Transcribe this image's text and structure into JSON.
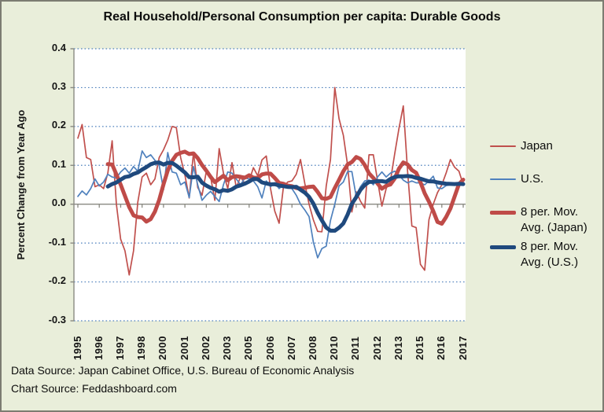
{
  "chart_data": {
    "type": "line",
    "title": "Real Household/Personal Consumption per capita: Durable Goods",
    "ylabel": "Percent Change from Year Ago",
    "x_unit": "quarter",
    "x_start": "1995Q1",
    "x_end": "2017Q3",
    "x_tick_every_n_quarters": 5,
    "x_tick_labels": [
      "1995",
      "1996",
      "1997",
      "1998",
      "2000",
      "2001",
      "2002",
      "2003",
      "2005",
      "2006",
      "2007",
      "2008",
      "2010",
      "2011",
      "2012",
      "2013",
      "2015",
      "2016",
      "2017"
    ],
    "y_ticks": [
      0.4,
      0.3,
      0.2,
      0.1,
      0.0,
      -0.1,
      -0.2,
      -0.3
    ],
    "y_tick_labels": [
      "0.4",
      "0.3",
      "0.2",
      "0.1",
      "0.0",
      "-0.1",
      "-0.2",
      "-0.3"
    ],
    "ylim": [
      -0.3,
      0.4
    ],
    "grid": "horizontal-dotted",
    "gridline_color": "#4f81bd",
    "axis_color": "#8a8a82",
    "plot_background": "#ffffff",
    "figure_background": "#e9eeda",
    "legend_position": "right",
    "series": [
      {
        "id": "japan",
        "name": "Japan",
        "kind": "raw",
        "color": "#c0504d",
        "stroke_width": 1.7,
        "values": [
          0.17,
          0.205,
          0.12,
          0.115,
          0.045,
          0.05,
          0.04,
          0.08,
          0.163,
          0.0,
          -0.09,
          -0.12,
          -0.182,
          -0.12,
          0.005,
          0.07,
          0.08,
          0.05,
          0.065,
          0.12,
          0.14,
          0.165,
          0.2,
          0.197,
          0.12,
          0.075,
          0.016,
          0.133,
          0.043,
          0.023,
          0.084,
          0.07,
          0.01,
          0.143,
          0.08,
          0.04,
          0.107,
          0.043,
          0.07,
          0.053,
          0.06,
          0.094,
          0.073,
          0.114,
          0.124,
          0.04,
          -0.018,
          -0.049,
          0.043,
          0.057,
          0.06,
          0.077,
          0.115,
          0.053,
          0.0,
          -0.04,
          -0.07,
          -0.071,
          0.047,
          0.115,
          0.3,
          0.22,
          0.177,
          0.1,
          -0.02,
          0.032,
          0.008,
          -0.01,
          0.127,
          0.127,
          0.06,
          -0.005,
          0.04,
          0.06,
          0.13,
          0.195,
          0.253,
          0.086,
          -0.056,
          -0.06,
          -0.155,
          -0.17,
          -0.04,
          0.0,
          0.03,
          0.05,
          0.08,
          0.115,
          0.095,
          0.085,
          0.05
        ]
      },
      {
        "id": "us",
        "name": "U.S.",
        "kind": "raw",
        "color": "#4f81bd",
        "stroke_width": 1.7,
        "values": [
          0.02,
          0.034,
          0.024,
          0.04,
          0.065,
          0.047,
          0.057,
          0.077,
          0.07,
          0.067,
          0.083,
          0.093,
          0.08,
          0.097,
          0.085,
          0.137,
          0.12,
          0.127,
          0.113,
          0.1,
          0.037,
          0.133,
          0.083,
          0.08,
          0.05,
          0.057,
          0.017,
          0.097,
          0.05,
          0.01,
          0.023,
          0.033,
          0.02,
          0.007,
          0.05,
          0.083,
          0.08,
          0.065,
          0.05,
          0.067,
          0.065,
          0.06,
          0.045,
          0.016,
          0.06,
          0.045,
          0.055,
          0.04,
          0.05,
          0.045,
          0.04,
          0.023,
          0.0,
          -0.015,
          -0.032,
          -0.097,
          -0.138,
          -0.114,
          -0.108,
          -0.042,
          0.0,
          0.047,
          0.057,
          0.084,
          0.084,
          0.02,
          0.045,
          0.06,
          0.062,
          0.05,
          0.07,
          0.083,
          0.07,
          0.08,
          0.085,
          0.075,
          0.062,
          0.055,
          0.06,
          0.055,
          0.055,
          0.05,
          0.06,
          0.072,
          0.042,
          0.04,
          0.048,
          0.05,
          0.052,
          0.055,
          0.055
        ]
      },
      {
        "id": "japan-ma",
        "name": "8 per. Mov. Avg. (Japan)",
        "kind": "moving_average",
        "window": 8,
        "source": "japan",
        "color": "#bf4b48",
        "stroke_width": 5
      },
      {
        "id": "us-ma",
        "name": "8 per. Mov. Avg. (U.S.)",
        "kind": "moving_average",
        "window": 8,
        "source": "us",
        "color": "#1f497d",
        "stroke_width": 5
      }
    ]
  },
  "footer": {
    "data_source": "Data Source: Japan Cabinet Office, U.S. Bureau of Economic Analysis",
    "chart_source": "Chart Source: Feddashboard.com"
  }
}
